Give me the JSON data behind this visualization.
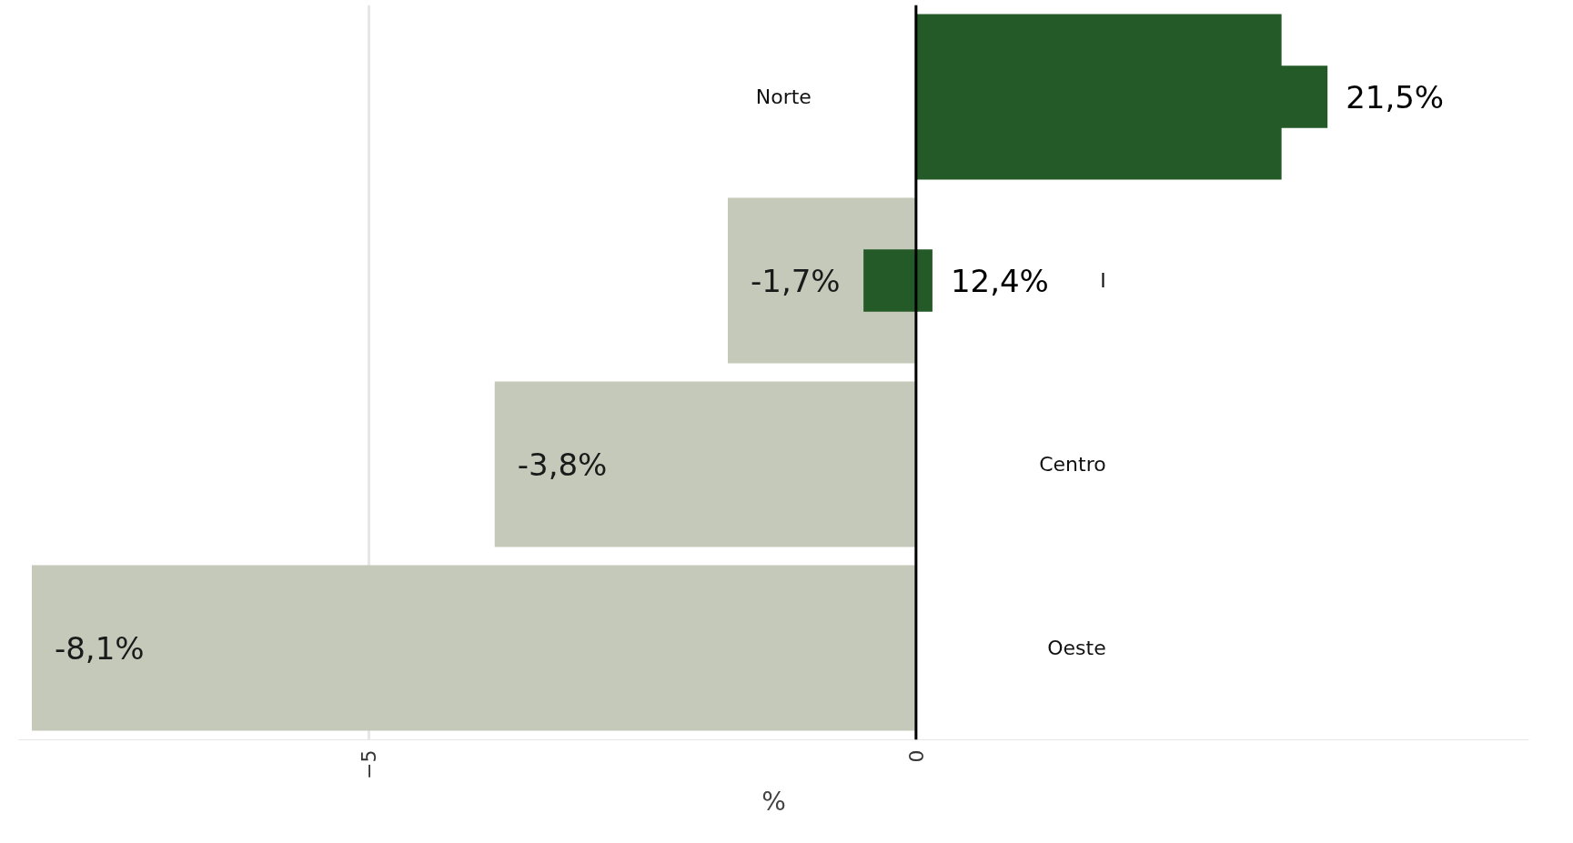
{
  "chart_data": {
    "type": "bar",
    "orientation": "horizontal",
    "xlabel": "%",
    "categories": [
      "Norte",
      "I",
      "Centro",
      "Oeste"
    ],
    "series": [
      {
        "colors": [
          "#245a27",
          "#c5c9b9",
          "#c5c9b9",
          "#c5c9b9"
        ],
        "values": [
          3.34,
          -1.72,
          -3.85,
          -8.08
        ],
        "value_labels": [
          null,
          "-1,7%",
          "-3,8%",
          "-8,1%"
        ]
      },
      {
        "color": "#245a27",
        "values": [
          3.76,
          0.63,
          null,
          null
        ],
        "base": [
          0,
          -0.48,
          null,
          null
        ]
      }
    ],
    "annotations": [
      {
        "text": "21,5%",
        "x": 3.76,
        "y": "Norte"
      },
      {
        "text": "12,4%",
        "x": 0.15,
        "y": "I"
      }
    ],
    "xlim": [
      -8.2,
      5.6
    ],
    "xticks": [
      -5,
      0
    ],
    "grid": "x",
    "ref_lines": [
      {
        "axis": "x",
        "value": 0,
        "color": "#000000"
      }
    ],
    "tick_labels": "x"
  }
}
